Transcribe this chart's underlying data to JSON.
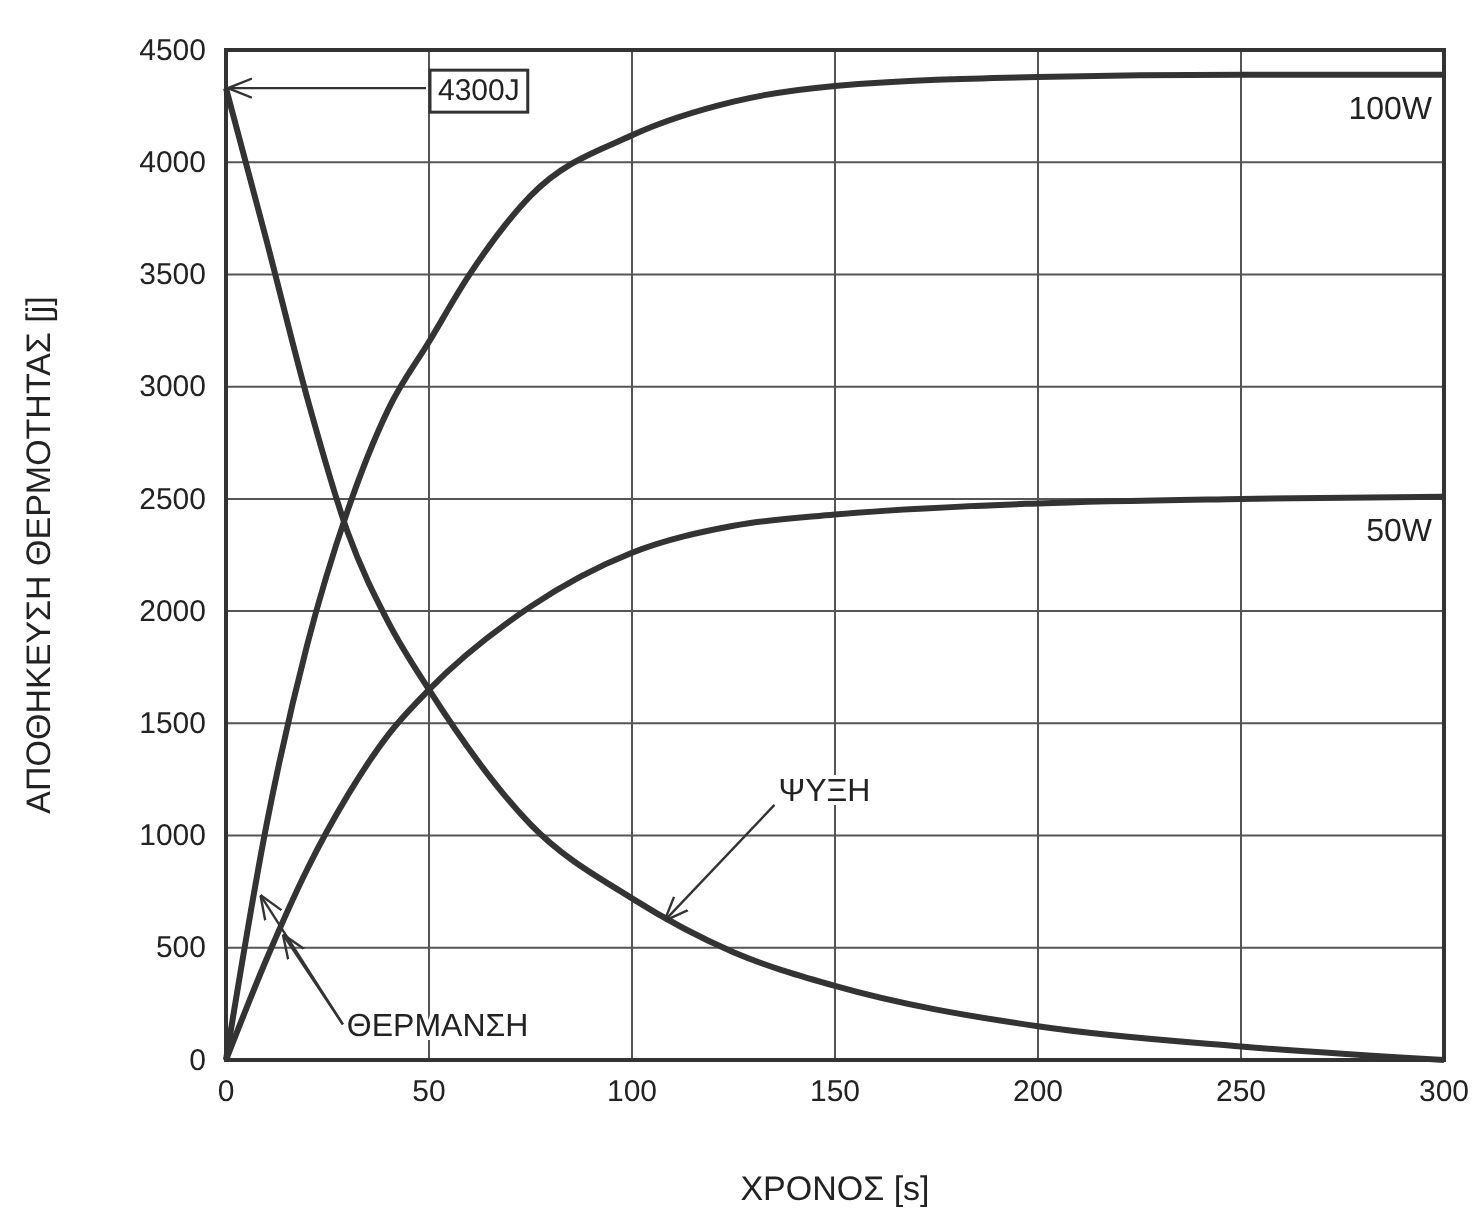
{
  "chart_data": {
    "type": "line",
    "xlabel": "ΧΡΟΝΟΣ [s]",
    "ylabel": "ΑΠΟΘΗΚΕΥΣΗ ΘΕΡΜΟΤΗΤΑΣ [j]",
    "xlim": [
      0,
      300
    ],
    "ylim": [
      0,
      4500
    ],
    "xticks": [
      0,
      50,
      100,
      150,
      200,
      250,
      300
    ],
    "yticks": [
      0,
      500,
      1000,
      1500,
      2000,
      2500,
      3000,
      3500,
      4000,
      4500
    ],
    "grid": true,
    "line_style": "solid",
    "series": [
      {
        "name": "100W",
        "color": "#333333",
        "x": [
          0,
          10,
          20,
          30,
          40,
          50,
          60,
          75,
          100,
          125,
          150,
          200,
          250,
          300
        ],
        "values": [
          0,
          1050,
          1850,
          2450,
          2900,
          3200,
          3500,
          3850,
          4120,
          4270,
          4340,
          4380,
          4390,
          4390
        ]
      },
      {
        "name": "50W",
        "color": "#333333",
        "x": [
          0,
          10,
          20,
          30,
          40,
          50,
          75,
          100,
          125,
          150,
          200,
          250,
          300
        ],
        "values": [
          0,
          450,
          850,
          1180,
          1450,
          1650,
          2020,
          2260,
          2380,
          2430,
          2480,
          2500,
          2510
        ]
      },
      {
        "color": "#333333",
        "x": [
          0,
          10,
          20,
          30,
          40,
          50,
          75,
          100,
          125,
          150,
          200,
          250,
          300
        ],
        "values": [
          4330,
          3650,
          2950,
          2350,
          1950,
          1650,
          1050,
          720,
          480,
          330,
          150,
          60,
          0
        ]
      }
    ],
    "annotations": [
      {
        "text": "4300J",
        "x": 0,
        "y": 4330
      },
      {
        "text": "ΨΥΞΗ",
        "x": 108,
        "y": 620
      },
      {
        "text": "ΘΕΡΜΑΝΣΗ",
        "x": 14,
        "y": 560
      }
    ]
  }
}
